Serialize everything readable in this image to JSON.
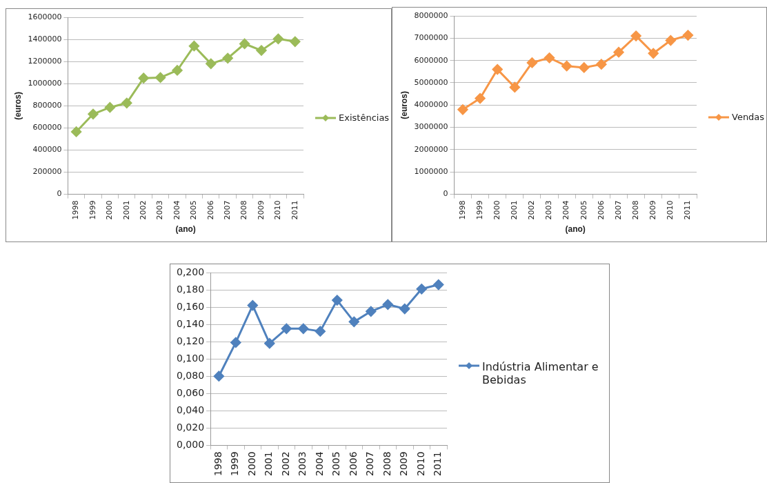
{
  "chart_data": [
    {
      "type": "line",
      "xlabel": "(ano)",
      "ylabel": "(euros)",
      "categories": [
        "1998",
        "1999",
        "2000",
        "2001",
        "2002",
        "2003",
        "2004",
        "2005",
        "2006",
        "2007",
        "2008",
        "2009",
        "2010",
        "2011"
      ],
      "series": [
        {
          "name": "Existências",
          "color": "#9bbb59",
          "values": [
            565000,
            725000,
            785000,
            825000,
            1050000,
            1055000,
            1120000,
            1340000,
            1180000,
            1230000,
            1360000,
            1300000,
            1405000,
            1380000
          ]
        }
      ],
      "ylim": [
        0,
        1600000
      ],
      "yticks": [
        0,
        200000,
        400000,
        600000,
        800000,
        1000000,
        1200000,
        1400000,
        1600000
      ],
      "grid": "y",
      "legend": "right",
      "marker": "diamond"
    },
    {
      "type": "line",
      "xlabel": "(ano)",
      "ylabel": "(euros)",
      "categories": [
        "1998",
        "1999",
        "2000",
        "2001",
        "2002",
        "2003",
        "2004",
        "2005",
        "2006",
        "2007",
        "2008",
        "2009",
        "2010",
        "2011"
      ],
      "series": [
        {
          "name": "Vendas",
          "color": "#f79646",
          "values": [
            3800000,
            4300000,
            5600000,
            4800000,
            5900000,
            6120000,
            5750000,
            5680000,
            5830000,
            6370000,
            7100000,
            6320000,
            6900000,
            7130000
          ]
        }
      ],
      "ylim": [
        0,
        8000000
      ],
      "yticks": [
        0,
        1000000,
        2000000,
        3000000,
        4000000,
        5000000,
        6000000,
        7000000,
        8000000
      ],
      "grid": "y",
      "legend": "right",
      "marker": "diamond"
    },
    {
      "type": "line",
      "categories": [
        "1998",
        "1999",
        "2000",
        "2001",
        "2002",
        "2003",
        "2004",
        "2005",
        "2006",
        "2007",
        "2008",
        "2009",
        "2010",
        "2011"
      ],
      "series": [
        {
          "name": "Indústria Alimentar e Bebidas",
          "color": "#4f81bd",
          "values": [
            0.08,
            0.119,
            0.162,
            0.118,
            0.135,
            0.135,
            0.132,
            0.168,
            0.143,
            0.155,
            0.163,
            0.158,
            0.181,
            0.186
          ]
        }
      ],
      "ylim": [
        0,
        0.2
      ],
      "yticks": [
        {
          "value": 0,
          "label": "0,000"
        },
        {
          "value": 0.02,
          "label": "0,020"
        },
        {
          "value": 0.04,
          "label": "0,040"
        },
        {
          "value": 0.06,
          "label": "0,060"
        },
        {
          "value": 0.08,
          "label": "0,080"
        },
        {
          "value": 0.1,
          "label": "0,100"
        },
        {
          "value": 0.12,
          "label": "0,120"
        },
        {
          "value": 0.14,
          "label": "0,140"
        },
        {
          "value": 0.16,
          "label": "0,160"
        },
        {
          "value": 0.18,
          "label": "0,180"
        },
        {
          "value": 0.2,
          "label": "0,200"
        }
      ],
      "grid": "y",
      "legend": "right",
      "marker": "diamond"
    }
  ]
}
